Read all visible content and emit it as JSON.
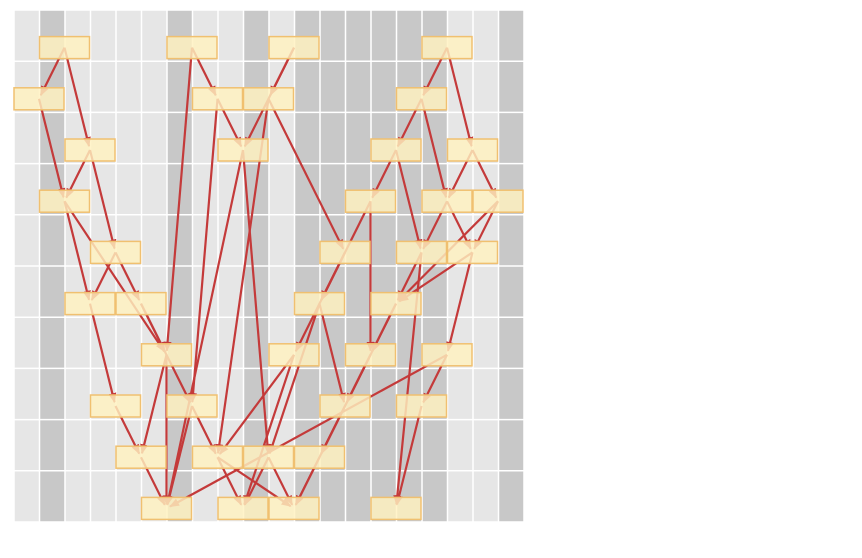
{
  "colors": {
    "column_light": "#e6e6e6",
    "column_dark": "#c8c8c8",
    "grid_line": "#ffffff",
    "node_fill": "#fff2c0",
    "node_stroke": "#f0c070",
    "edge": "#c43a3a"
  },
  "grid": {
    "columns": 20,
    "rows": 10
  },
  "column_shading": [
    "light",
    "dark",
    "light",
    "light",
    "light",
    "light",
    "dark",
    "light",
    "light",
    "dark",
    "light",
    "dark",
    "dark",
    "dark",
    "dark",
    "dark",
    "dark",
    "light",
    "light",
    "dark"
  ],
  "nodes": [
    {
      "id": "a1",
      "col": 1,
      "row": 0
    },
    {
      "id": "a2",
      "col": 6,
      "row": 0
    },
    {
      "id": "a3",
      "col": 10,
      "row": 0
    },
    {
      "id": "a4",
      "col": 16,
      "row": 0
    },
    {
      "id": "b1",
      "col": 0,
      "row": 1
    },
    {
      "id": "b2",
      "col": 7,
      "row": 1
    },
    {
      "id": "b3",
      "col": 9,
      "row": 1
    },
    {
      "id": "b4",
      "col": 15,
      "row": 1
    },
    {
      "id": "c1",
      "col": 2,
      "row": 2
    },
    {
      "id": "c2",
      "col": 8,
      "row": 2
    },
    {
      "id": "c3",
      "col": 14,
      "row": 2
    },
    {
      "id": "c4",
      "col": 17,
      "row": 2
    },
    {
      "id": "d1",
      "col": 1,
      "row": 3
    },
    {
      "id": "d2",
      "col": 13,
      "row": 3
    },
    {
      "id": "d3",
      "col": 16,
      "row": 3
    },
    {
      "id": "d4",
      "col": 18,
      "row": 3
    },
    {
      "id": "e1",
      "col": 3,
      "row": 4
    },
    {
      "id": "e2",
      "col": 12,
      "row": 4
    },
    {
      "id": "e3",
      "col": 15,
      "row": 4
    },
    {
      "id": "e4",
      "col": 17,
      "row": 4
    },
    {
      "id": "f1",
      "col": 2,
      "row": 5
    },
    {
      "id": "f2",
      "col": 4,
      "row": 5
    },
    {
      "id": "f3",
      "col": 11,
      "row": 5
    },
    {
      "id": "f4",
      "col": 14,
      "row": 5
    },
    {
      "id": "g1",
      "col": 5,
      "row": 6
    },
    {
      "id": "g2",
      "col": 10,
      "row": 6
    },
    {
      "id": "g3",
      "col": 13,
      "row": 6
    },
    {
      "id": "g4",
      "col": 16,
      "row": 6
    },
    {
      "id": "h1",
      "col": 3,
      "row": 7
    },
    {
      "id": "h2",
      "col": 6,
      "row": 7
    },
    {
      "id": "h3",
      "col": 12,
      "row": 7
    },
    {
      "id": "h4",
      "col": 15,
      "row": 7
    },
    {
      "id": "i1",
      "col": 4,
      "row": 8
    },
    {
      "id": "i2",
      "col": 7,
      "row": 8
    },
    {
      "id": "i3",
      "col": 9,
      "row": 8
    },
    {
      "id": "i4",
      "col": 11,
      "row": 8
    },
    {
      "id": "j1",
      "col": 5,
      "row": 9
    },
    {
      "id": "j2",
      "col": 8,
      "row": 9
    },
    {
      "id": "j3",
      "col": 10,
      "row": 9
    },
    {
      "id": "j4",
      "col": 14,
      "row": 9
    }
  ],
  "edges": [
    [
      "a1",
      "b1"
    ],
    [
      "a1",
      "c1"
    ],
    [
      "a2",
      "b2"
    ],
    [
      "a2",
      "g1"
    ],
    [
      "a3",
      "c2"
    ],
    [
      "a3",
      "b3"
    ],
    [
      "a4",
      "b4"
    ],
    [
      "a4",
      "c4"
    ],
    [
      "b1",
      "d1"
    ],
    [
      "b2",
      "c2"
    ],
    [
      "b2",
      "h2"
    ],
    [
      "b3",
      "e2"
    ],
    [
      "b3",
      "i2"
    ],
    [
      "b4",
      "c3"
    ],
    [
      "b4",
      "d3"
    ],
    [
      "c1",
      "d1"
    ],
    [
      "c1",
      "e1"
    ],
    [
      "c2",
      "i3"
    ],
    [
      "c2",
      "j1"
    ],
    [
      "c3",
      "d2"
    ],
    [
      "c3",
      "e3"
    ],
    [
      "c4",
      "d3"
    ],
    [
      "c4",
      "d4"
    ],
    [
      "d1",
      "f1"
    ],
    [
      "d1",
      "g1"
    ],
    [
      "d2",
      "f3"
    ],
    [
      "d2",
      "g3"
    ],
    [
      "d3",
      "e3"
    ],
    [
      "d3",
      "e4"
    ],
    [
      "d4",
      "e4"
    ],
    [
      "d4",
      "f4"
    ],
    [
      "e1",
      "f1"
    ],
    [
      "e1",
      "f2"
    ],
    [
      "e2",
      "f3"
    ],
    [
      "e2",
      "g2"
    ],
    [
      "e3",
      "f4"
    ],
    [
      "e3",
      "j4"
    ],
    [
      "e4",
      "f4"
    ],
    [
      "e4",
      "g4"
    ],
    [
      "f1",
      "h1"
    ],
    [
      "f2",
      "g1"
    ],
    [
      "f2",
      "h2"
    ],
    [
      "f3",
      "h3"
    ],
    [
      "f3",
      "i3"
    ],
    [
      "f4",
      "g3"
    ],
    [
      "f4",
      "h3"
    ],
    [
      "g1",
      "i1"
    ],
    [
      "g1",
      "j1"
    ],
    [
      "g2",
      "i2"
    ],
    [
      "g2",
      "j2"
    ],
    [
      "g3",
      "i4"
    ],
    [
      "g3",
      "j3"
    ],
    [
      "g4",
      "h4"
    ],
    [
      "g4",
      "j1"
    ],
    [
      "h1",
      "i1"
    ],
    [
      "h2",
      "i2"
    ],
    [
      "h2",
      "j1"
    ],
    [
      "h3",
      "i4"
    ],
    [
      "h4",
      "j4"
    ],
    [
      "i1",
      "j1"
    ],
    [
      "i2",
      "j2"
    ],
    [
      "i2",
      "j3"
    ],
    [
      "i3",
      "j2"
    ],
    [
      "i3",
      "j3"
    ],
    [
      "i4",
      "j3"
    ]
  ]
}
